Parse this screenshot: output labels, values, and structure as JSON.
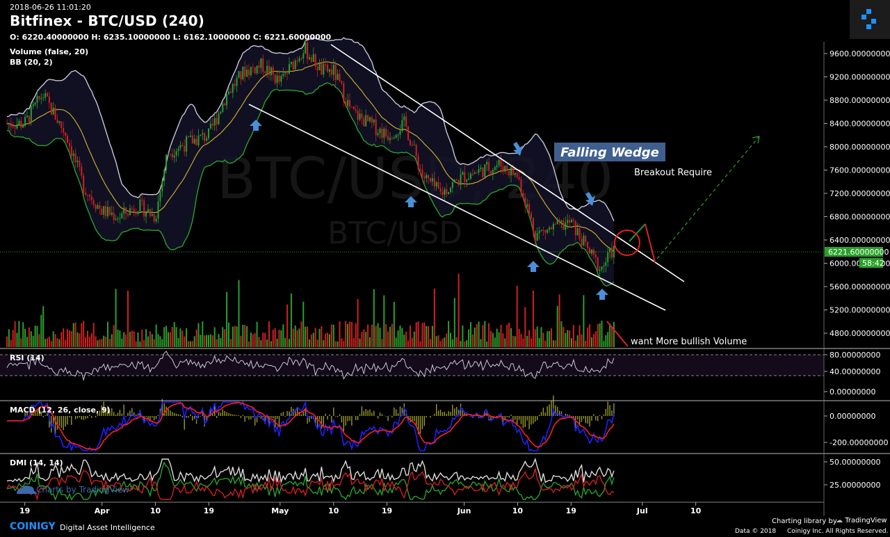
{
  "header": {
    "timestamp": "2018-06-26 11:01:20",
    "title": "Bitfinex - BTC/USD (240)",
    "ohlc": "O: 6220.40000000 H: 6235.10000000 L: 6162.10000000 C: 6221.60000000"
  },
  "indicators": {
    "volume": "Volume (false, 20)",
    "bb": "BB (20, 2)",
    "rsi": "RSI (14)",
    "macd": "MACD (12, 26, close, 9)",
    "dmi": "DMI (14, 14)"
  },
  "watermark": {
    "main": "BTC/USD, 240",
    "sub": "BTC/USD"
  },
  "annotations": {
    "falling_wedge": "Falling Wedge",
    "breakout": "Breakout Require",
    "volume_note": "want More bullish Volume"
  },
  "footer": {
    "brand": "COINIGY",
    "tagline": "Digital Asset Intelligence",
    "charts_by": "Charts by TradingView",
    "charting_library": "Charting library by",
    "tv_name": "TradingView",
    "copyright": "Data © 2018",
    "rights": "Coinigy Inc. All Rights Reserved."
  },
  "colors": {
    "bb_upper": "#c8c8d8",
    "bb_lower": "#2aa02a",
    "bb_mid": "#c8a832",
    "up": "#2aa02a",
    "down": "#d02020",
    "macd": "#2020ff",
    "signal": "#ff2020",
    "current_price": "#2aa02a"
  },
  "chart_data": {
    "type": "candlestick",
    "price_axis": {
      "ticks": [
        "9600.00000000",
        "9200.00000000",
        "8800.00000000",
        "8400.00000000",
        "8000.00000000",
        "7600.00000000",
        "7200.00000000",
        "6800.00000000",
        "6400.00000000",
        "6000.00000000",
        "5600.00000000",
        "5200.00000000",
        "4800.00000000"
      ],
      "range": [
        4600,
        9800
      ]
    },
    "current_price": {
      "label": "6221.60000000",
      "value": 6221.6,
      "countdown": "58:42"
    },
    "rsi_axis": {
      "ticks": [
        "80.00000000",
        "40.00000000",
        "0.00000000"
      ]
    },
    "macd_axis": {
      "ticks": [
        "0.00000000",
        "-200.00000000"
      ]
    },
    "dmi_axis": {
      "ticks": [
        "50.00000000",
        "25.00000000"
      ]
    },
    "x_ticks": [
      "19",
      "Apr",
      "10",
      "19",
      "May",
      "10",
      "19",
      "Jun",
      "10",
      "19",
      "Jul",
      "10"
    ],
    "close_series": [
      {
        "date": "2018-03-19",
        "value": 8400
      },
      {
        "date": "2018-03-22",
        "value": 8900
      },
      {
        "date": "2018-03-26",
        "value": 8200
      },
      {
        "date": "2018-03-29",
        "value": 7300
      },
      {
        "date": "2018-04-01",
        "value": 6900
      },
      {
        "date": "2018-04-04",
        "value": 6800
      },
      {
        "date": "2018-04-07",
        "value": 7000
      },
      {
        "date": "2018-04-10",
        "value": 6800
      },
      {
        "date": "2018-04-12",
        "value": 7900
      },
      {
        "date": "2018-04-16",
        "value": 8100
      },
      {
        "date": "2018-04-19",
        "value": 8200
      },
      {
        "date": "2018-04-22",
        "value": 8900
      },
      {
        "date": "2018-04-25",
        "value": 9300
      },
      {
        "date": "2018-04-28",
        "value": 9400
      },
      {
        "date": "2018-05-01",
        "value": 9100
      },
      {
        "date": "2018-05-05",
        "value": 9700
      },
      {
        "date": "2018-05-08",
        "value": 9300
      },
      {
        "date": "2018-05-10",
        "value": 9300
      },
      {
        "date": "2018-05-13",
        "value": 8600
      },
      {
        "date": "2018-05-16",
        "value": 8400
      },
      {
        "date": "2018-05-19",
        "value": 8200
      },
      {
        "date": "2018-05-22",
        "value": 8400
      },
      {
        "date": "2018-05-25",
        "value": 7500
      },
      {
        "date": "2018-05-28",
        "value": 7200
      },
      {
        "date": "2018-06-01",
        "value": 7500
      },
      {
        "date": "2018-06-04",
        "value": 7600
      },
      {
        "date": "2018-06-07",
        "value": 7700
      },
      {
        "date": "2018-06-10",
        "value": 7500
      },
      {
        "date": "2018-06-13",
        "value": 6500
      },
      {
        "date": "2018-06-16",
        "value": 6600
      },
      {
        "date": "2018-06-19",
        "value": 6700
      },
      {
        "date": "2018-06-22",
        "value": 6200
      },
      {
        "date": "2018-06-24",
        "value": 5900
      },
      {
        "date": "2018-06-26",
        "value": 6221.6
      }
    ]
  }
}
